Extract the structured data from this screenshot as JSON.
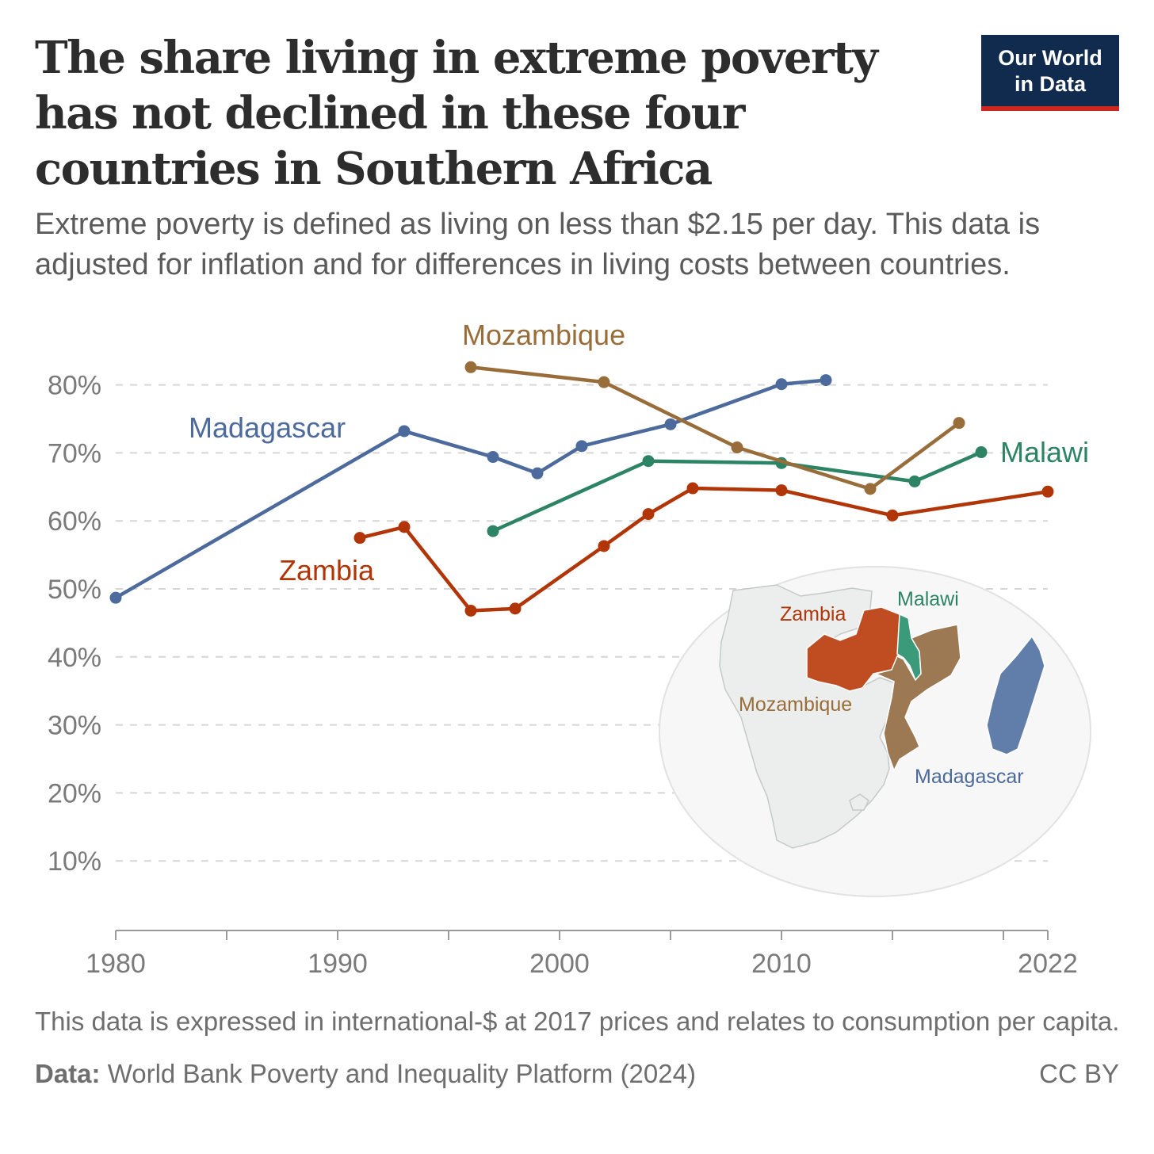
{
  "title": "The share living in extreme poverty has not declined in these four countries in Southern Africa",
  "subtitle": "Extreme poverty is defined as living on less than $2.15 per day. This data is adjusted for inflation and for differences in living costs between countries.",
  "logo": {
    "line1": "Our World",
    "line2": "in Data"
  },
  "note": "This data is expressed in international-$ at 2017 prices and relates to consumption per capita.",
  "source_label": "Data:",
  "source_text": "World Bank Poverty and Inequality Platform (2024)",
  "license": "CC BY",
  "map_labels": {
    "zambia": "Zambia",
    "malawi": "Malawi",
    "mozambique": "Mozambique",
    "madagascar": "Madagascar"
  },
  "chart_data": {
    "type": "line",
    "x_ticks": [
      "1980",
      "1990",
      "2000",
      "2010",
      "2022"
    ],
    "y_ticks": [
      "10%",
      "20%",
      "30%",
      "40%",
      "50%",
      "60%",
      "70%",
      "80%"
    ],
    "xlim": [
      1980,
      2022
    ],
    "ylim": [
      0,
      80
    ],
    "grid": true,
    "series": [
      {
        "name": "Madagascar",
        "color": "#4c6a9c",
        "points": [
          [
            1980,
            48.7
          ],
          [
            1993,
            73.2
          ],
          [
            1997,
            69.4
          ],
          [
            1999,
            67.0
          ],
          [
            2001,
            71.0
          ],
          [
            2005,
            74.2
          ],
          [
            2010,
            80.1
          ],
          [
            2012,
            80.7
          ]
        ]
      },
      {
        "name": "Mozambique",
        "color": "#996d39",
        "points": [
          [
            1996,
            82.6
          ],
          [
            2002,
            80.4
          ],
          [
            2008,
            70.8
          ],
          [
            2014,
            64.7
          ],
          [
            2018,
            74.4
          ]
        ]
      },
      {
        "name": "Malawi",
        "color": "#2c8465",
        "points": [
          [
            1997,
            58.5
          ],
          [
            2004,
            68.8
          ],
          [
            2010,
            68.5
          ],
          [
            2016,
            65.8
          ],
          [
            2019,
            70.1
          ]
        ]
      },
      {
        "name": "Zambia",
        "color": "#b13507",
        "points": [
          [
            1991,
            57.5
          ],
          [
            1993,
            59.1
          ],
          [
            1996,
            46.8
          ],
          [
            1998,
            47.1
          ],
          [
            2002,
            56.3
          ],
          [
            2004,
            61.0
          ],
          [
            2006,
            64.8
          ],
          [
            2010,
            64.5
          ],
          [
            2015,
            60.8
          ],
          [
            2022,
            64.3
          ]
        ]
      }
    ]
  }
}
